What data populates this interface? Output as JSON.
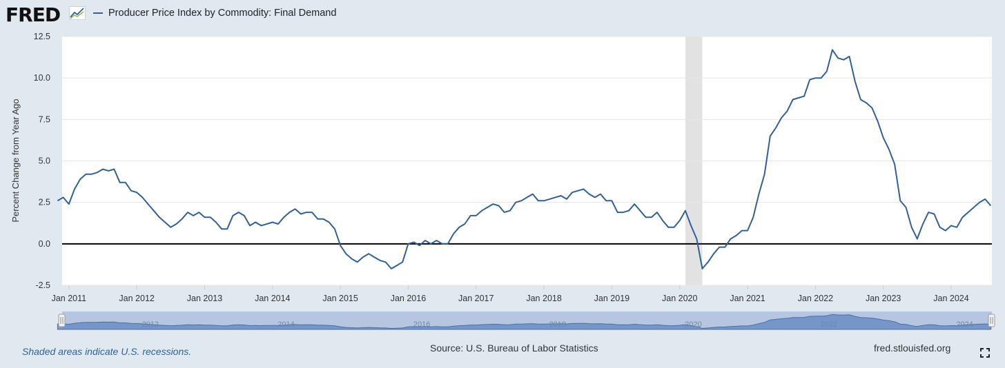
{
  "header": {
    "logo_text": "FRED",
    "logo_graph_icon": "line-graph-icon",
    "legend_label": "Producer Price Index by Commodity: Final Demand"
  },
  "footer": {
    "recession_note": "Shaded areas indicate U.S. recessions.",
    "source": "Source: U.S. Bureau of Labor Statistics",
    "site": "fred.stlouisfed.org",
    "fullscreen_icon": "fullscreen-icon"
  },
  "colors": {
    "series": "#2f6097",
    "recession": "#e2e2e2",
    "zero_line": "#000000",
    "page_bg": "#e1e9f0",
    "navigator_bg": "#b7c6e0",
    "navigator_fill": "#6b8cc4"
  },
  "chart_data": {
    "type": "line",
    "title": "Producer Price Index by Commodity: Final Demand",
    "ylabel": "Percent Change from Year Ago",
    "xlabel": "",
    "ylim": [
      -2.5,
      12.5
    ],
    "yticks": [
      12.5,
      10.0,
      7.5,
      5.0,
      2.5,
      0.0,
      -2.5
    ],
    "ytick_labels": [
      "12.5",
      "10.0",
      "7.5",
      "5.0",
      "2.5",
      "0.0",
      "-2.5"
    ],
    "xlim": [
      2010.9,
      2024.6
    ],
    "xticks": [
      {
        "year": 2011,
        "label": "Jan 2011"
      },
      {
        "year": 2012,
        "label": "Jan 2012"
      },
      {
        "year": 2013,
        "label": "Jan 2013"
      },
      {
        "year": 2014,
        "label": "Jan 2014"
      },
      {
        "year": 2015,
        "label": "Jan 2015"
      },
      {
        "year": 2016,
        "label": "Jan 2016"
      },
      {
        "year": 2017,
        "label": "Jan 2017"
      },
      {
        "year": 2018,
        "label": "Jan 2018"
      },
      {
        "year": 2019,
        "label": "Jan 2019"
      },
      {
        "year": 2020,
        "label": "Jan 2020"
      },
      {
        "year": 2021,
        "label": "Jan 2021"
      },
      {
        "year": 2022,
        "label": "Jan 2022"
      },
      {
        "year": 2023,
        "label": "Jan 2023"
      },
      {
        "year": 2024,
        "label": "Jan 2024"
      }
    ],
    "recessions": [
      {
        "start": "2020-02",
        "end": "2020-04"
      }
    ],
    "zero_line": 0,
    "grid": "horizontal",
    "navigator_labels": [
      "2012",
      "2014",
      "2016",
      "2018",
      "2020",
      "2022",
      "2024"
    ],
    "series": [
      {
        "name": "Producer Price Index by Commodity: Final Demand",
        "start": "2010-11",
        "frequency": "monthly",
        "values": [
          2.6,
          2.8,
          2.4,
          3.3,
          3.9,
          4.2,
          4.2,
          4.3,
          4.5,
          4.4,
          4.5,
          3.7,
          3.7,
          3.2,
          3.1,
          2.8,
          2.4,
          2.0,
          1.6,
          1.3,
          1.0,
          1.2,
          1.5,
          1.9,
          1.7,
          1.9,
          1.6,
          1.6,
          1.3,
          0.9,
          0.9,
          1.7,
          1.9,
          1.7,
          1.1,
          1.3,
          1.1,
          1.2,
          1.3,
          1.2,
          1.6,
          1.9,
          2.1,
          1.8,
          1.9,
          1.9,
          1.5,
          1.5,
          1.3,
          0.9,
          -0.1,
          -0.6,
          -0.9,
          -1.1,
          -0.8,
          -0.6,
          -0.8,
          -1.0,
          -1.1,
          -1.5,
          -1.3,
          -1.1,
          0.0,
          0.1,
          -0.1,
          0.2,
          0.0,
          0.2,
          0.0,
          0.0,
          0.6,
          1.0,
          1.2,
          1.7,
          1.7,
          2.0,
          2.2,
          2.4,
          2.3,
          1.9,
          2.0,
          2.5,
          2.6,
          2.8,
          3.0,
          2.6,
          2.6,
          2.7,
          2.8,
          2.9,
          2.7,
          3.1,
          3.2,
          3.3,
          3.0,
          2.8,
          3.0,
          2.6,
          2.6,
          1.9,
          1.9,
          2.0,
          2.4,
          2.0,
          1.6,
          1.6,
          1.9,
          1.4,
          1.0,
          1.0,
          1.4,
          2.0,
          1.1,
          0.3,
          -1.5,
          -1.1,
          -0.6,
          -0.2,
          -0.2,
          0.3,
          0.5,
          0.8,
          0.8,
          1.6,
          3.0,
          4.2,
          6.5,
          7.0,
          7.6,
          8.0,
          8.7,
          8.8,
          8.9,
          9.9,
          10.0,
          10.0,
          10.4,
          11.7,
          11.2,
          11.1,
          11.3,
          9.8,
          8.7,
          8.5,
          8.2,
          7.4,
          6.4,
          5.7,
          4.8,
          2.6,
          2.2,
          1.0,
          0.3,
          1.2,
          1.9,
          1.8,
          1.0,
          0.8,
          1.1,
          1.0,
          1.6,
          1.9,
          2.2,
          2.5,
          2.7,
          2.3
        ]
      }
    ]
  }
}
